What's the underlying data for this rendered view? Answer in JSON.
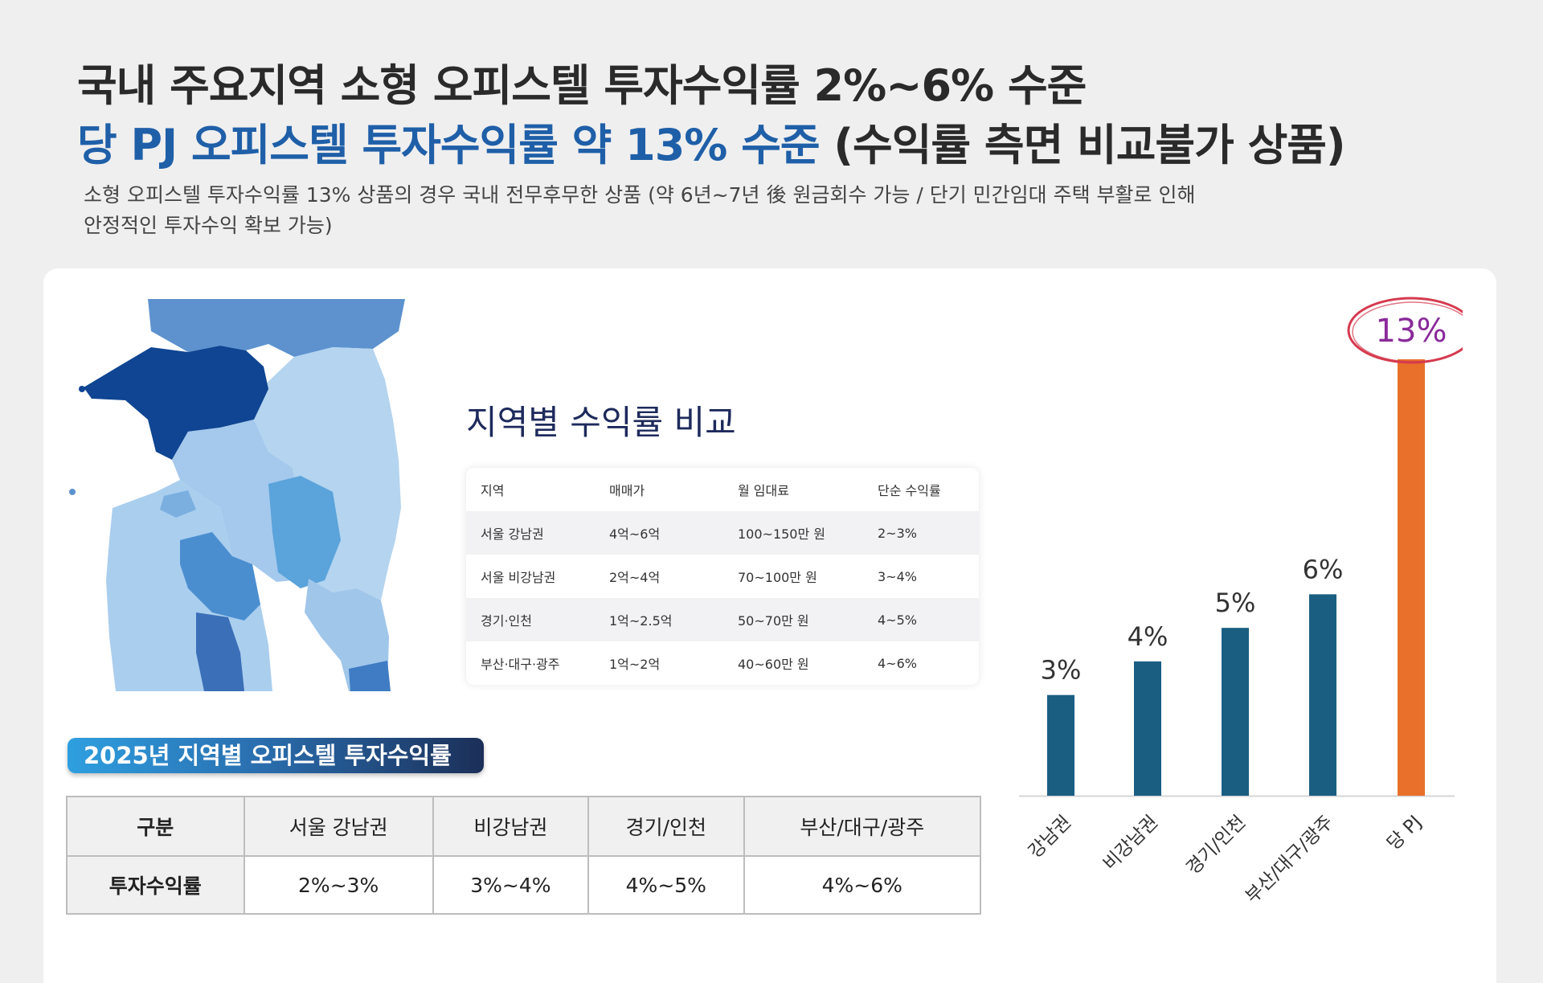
{
  "header": {
    "line1": "국내 주요지역 소형 오피스텔 투자수익률 2%~6% 수준",
    "line2_blue": "당 PJ 오피스텔 투자수익률 약 13% 수준",
    "line2_dark": "(수익률 측면 비교불가 상품)",
    "desc_line1": "소형 오피스텔 투자수익률 13% 상품의 경우 국내 전무후무한 상품 (약 6년~7년 後 원금회수 가능 / 단기 민간임대 주택 부활로 인해",
    "desc_line2": "안정적인 투자수익 확보 가능)"
  },
  "comparison": {
    "title": "지역별 수익률 비교",
    "headers": [
      "지역",
      "매매가",
      "월 임대료",
      "단순 수익률"
    ],
    "rows": [
      [
        "서울 강남권",
        "4억~6억",
        "100~150만 원",
        "2~3%"
      ],
      [
        "서울 비강남권",
        "2억~4억",
        "70~100만 원",
        "3~4%"
      ],
      [
        "경기·인천",
        "1억~2.5억",
        "50~70만 원",
        "4~5%"
      ],
      [
        "부산·대구·광주",
        "1억~2억",
        "40~60만 원",
        "4~6%"
      ]
    ]
  },
  "yield_table": {
    "badge": "2025년 지역별 오피스텔 투자수익률",
    "headers": [
      "구분",
      "서울 강남권",
      "비강남권",
      "경기/인천",
      "부산/대구/광주"
    ],
    "row_label": "투자수익률",
    "values": [
      "2%~3%",
      "3%~4%",
      "4%~5%",
      "4%~6%"
    ]
  },
  "chart_data": {
    "type": "bar",
    "categories": [
      "강남권",
      "비강남권",
      "경기/인천",
      "부산/대구/광주",
      "당 PJ"
    ],
    "values": [
      3,
      4,
      5,
      6,
      13
    ],
    "value_labels": [
      "3%",
      "4%",
      "5%",
      "6%",
      "13%"
    ],
    "ylim": [
      0,
      13
    ],
    "grid": false,
    "colors": {
      "default": "#1a5e82",
      "highlight": "#e8702a",
      "circle": "#d63a4e",
      "highlight_text": "#8a2a9a"
    }
  }
}
